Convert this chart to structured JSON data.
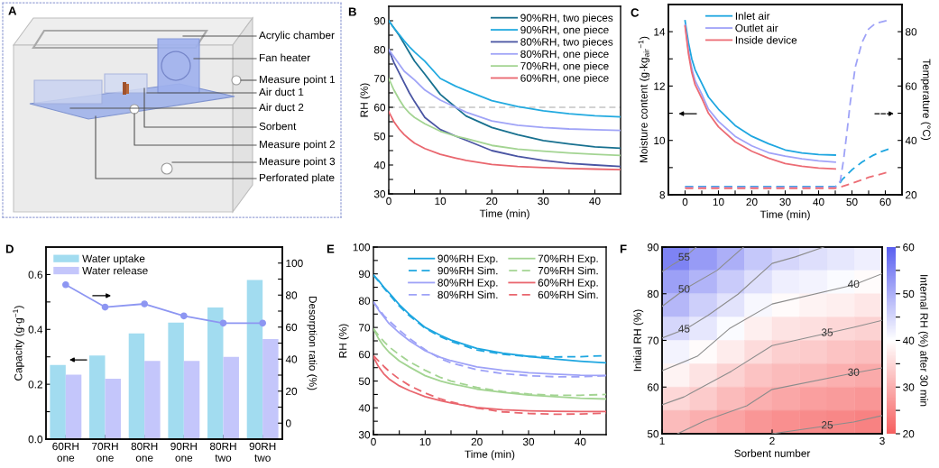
{
  "chart_data": [
    {
      "type": "other",
      "title": "A",
      "annotations": [
        "Acrylic chamber",
        "Fan heater",
        "Measure point 1",
        "Air duct 1",
        "Air duct 2",
        "Sorbent",
        "Measure point 2",
        "Measure point 3",
        "Perforated plate"
      ]
    },
    {
      "type": "line",
      "title": "B",
      "xlabel": "Time (min)",
      "ylabel": "RH (%)",
      "x": [
        0,
        1,
        2,
        3,
        4,
        5,
        7,
        10,
        13,
        15,
        20,
        25,
        30,
        35,
        40,
        45
      ],
      "xlim": [
        0,
        45
      ],
      "xticks": [
        0,
        {
          "value": 5,
          "label": null
        },
        10,
        {
          "value": 15,
          "label": null
        },
        20,
        {
          "value": 25,
          "label": null
        },
        30,
        {
          "value": 35,
          "label": null
        },
        40
      ],
      "ylim": [
        30,
        95
      ],
      "yticks": [
        30,
        {
          "value": 35,
          "label": null
        },
        40,
        {
          "value": 45,
          "label": null
        },
        50,
        {
          "value": 55,
          "label": null
        },
        60,
        {
          "value": 65,
          "label": null
        },
        70,
        {
          "value": 75,
          "label": null
        },
        80,
        {
          "value": 85,
          "label": null
        },
        90
      ],
      "legend": "top right",
      "ref_lines": [
        {
          "axis": "y",
          "value": 60,
          "color": "#c4c4c4",
          "line_style": "dashed"
        }
      ],
      "series": [
        {
          "name": "90%RH, two pieces",
          "color": "#17708f",
          "values": [
            90,
            87.5,
            85,
            82,
            79,
            76,
            71.5,
            64.5,
            60,
            57,
            53,
            50.5,
            48.5,
            47.3,
            46.3,
            45.8
          ]
        },
        {
          "name": "90%RH, one piece",
          "color": "#22aae0",
          "values": [
            90,
            87.5,
            85.3,
            83,
            81,
            79.2,
            76,
            70,
            67.3,
            65.8,
            62.3,
            60.3,
            58.8,
            57.8,
            57.1,
            56.7
          ]
        },
        {
          "name": "80%RH, two pieces",
          "color": "#4a55a3",
          "values": [
            80,
            75.5,
            72,
            68.5,
            65,
            62,
            56.5,
            52.3,
            50,
            48.6,
            45,
            43,
            41.6,
            40.6,
            40,
            39.5
          ]
        },
        {
          "name": "80%RH, one piece",
          "color": "#a0a4f7",
          "values": [
            80,
            77.5,
            75,
            72.5,
            71,
            69.5,
            66,
            62.5,
            60,
            58.3,
            55.3,
            53.8,
            53,
            52.5,
            52.2,
            52
          ]
        },
        {
          "name": "70%RH, one piece",
          "color": "#a3d492",
          "values": [
            70,
            66,
            62.8,
            60,
            58,
            56.5,
            54.3,
            51.7,
            50,
            49.2,
            46.8,
            45.5,
            44.8,
            44.2,
            43.7,
            43.3
          ]
        },
        {
          "name": "60%RH, one piece",
          "color": "#e9666e",
          "values": [
            58.5,
            55,
            52.5,
            50.5,
            49,
            47.6,
            45.7,
            43.7,
            42.4,
            41.6,
            40.2,
            39.5,
            39.1,
            38.8,
            38.6,
            38.4
          ]
        }
      ]
    },
    {
      "type": "line",
      "title": "C",
      "xlabel": "Time (min)",
      "ylabel": "Moisture content (g·kg$_{air}$$^{−1}$)",
      "y2label": "Temperature (°C)",
      "x": [
        0,
        1,
        2,
        3,
        5,
        7,
        10,
        15,
        20,
        25,
        30,
        35,
        40,
        45
      ],
      "xlim": [
        -5,
        65
      ],
      "xticks": [
        0,
        {
          "value": 5,
          "label": null
        },
        10,
        {
          "value": 15,
          "label": null
        },
        20,
        {
          "value": 25,
          "label": null
        },
        30,
        {
          "value": 35,
          "label": null
        },
        40,
        {
          "value": 45,
          "label": null
        },
        50,
        {
          "value": 55,
          "label": null
        },
        60
      ],
      "ylim": [
        8,
        15
      ],
      "yticks": [
        8,
        {
          "value": 9,
          "label": null
        },
        10,
        {
          "value": 11,
          "label": null
        },
        12,
        {
          "value": 13,
          "label": null
        },
        14
      ],
      "y2lim": [
        20,
        90
      ],
      "y2ticks": [
        20,
        {
          "value": 30,
          "label": null
        },
        40,
        {
          "value": 50,
          "label": null
        },
        60,
        {
          "value": 70,
          "label": null
        },
        80
      ],
      "legend": "top left",
      "series": [
        {
          "name": "Inlet air",
          "color": "#1ea6e0",
          "values": [
            14.4,
            13.6,
            13.0,
            12.6,
            12.1,
            11.6,
            11.15,
            10.55,
            10.15,
            9.88,
            9.65,
            9.54,
            9.48,
            9.46
          ]
        },
        {
          "name": "Outlet air",
          "color": "#a0a2f8",
          "values": [
            14.25,
            13.3,
            12.65,
            12.2,
            11.7,
            11.15,
            10.7,
            10.15,
            9.8,
            9.55,
            9.42,
            9.32,
            9.25,
            9.2
          ]
        },
        {
          "name": "Inside device",
          "color": "#ec6c75",
          "values": [
            14.2,
            13.2,
            12.5,
            12.05,
            11.55,
            11.0,
            10.5,
            9.95,
            9.6,
            9.35,
            9.15,
            9.05,
            8.98,
            8.95
          ]
        },
        {
          "axis": "y2",
          "line_style": "dashed",
          "color": "#1ea6e0",
          "x": [
            0,
            45,
            46,
            47,
            50,
            53,
            56,
            59,
            61
          ],
          "values": [
            23,
            23,
            23.5,
            25.5,
            29.2,
            32,
            34.3,
            36,
            36.8
          ]
        },
        {
          "axis": "y2",
          "line_style": "dashed",
          "color": "#9ea2f7",
          "x": [
            0,
            45,
            46.5,
            47.5,
            48.5,
            49.5,
            51,
            53,
            55,
            57,
            61
          ],
          "values": [
            22.8,
            22.8,
            25,
            33,
            43,
            54,
            67,
            76,
            81,
            83,
            84.3
          ]
        },
        {
          "axis": "y2",
          "line_style": "dashed",
          "color": "#ec6d75",
          "x": [
            0,
            45,
            47,
            50,
            55,
            61
          ],
          "values": [
            22.4,
            22.4,
            23,
            24.2,
            26.4,
            28.4
          ]
        }
      ]
    },
    {
      "type": "bar",
      "title": "D",
      "ylabel": "Capacity (g·g$^{−1}$)",
      "y2label": "Desorption ratio (%)",
      "categories": [
        "60RH\none",
        "70RH\none",
        "80RH\none",
        "90RH\none",
        "80RH\ntwo",
        "90RH\ntwo"
      ],
      "ylim": [
        0,
        0.7
      ],
      "yticks": [
        {
          "value": 0,
          "label": "0.0"
        },
        {
          "value": 0.1,
          "label": null
        },
        0.2,
        {
          "value": 0.3,
          "label": null
        },
        0.4,
        {
          "value": 0.5,
          "label": null
        },
        0.6
      ],
      "y2lim": [
        -10,
        110
      ],
      "y2ticks": [
        0,
        {
          "value": 10,
          "label": null
        },
        20,
        {
          "value": 30,
          "label": null
        },
        40,
        {
          "value": 50,
          "label": null
        },
        60,
        {
          "value": 70,
          "label": null
        },
        80,
        {
          "value": 90,
          "label": null
        },
        100
      ],
      "legend": "top left",
      "series": [
        {
          "name": "Water uptake",
          "color": "#a2dcf0",
          "values": [
            0.27,
            0.305,
            0.385,
            0.425,
            0.48,
            0.58
          ]
        },
        {
          "name": "Water release",
          "color": "#c4c6fb",
          "values": [
            0.235,
            0.22,
            0.285,
            0.285,
            0.3,
            0.365
          ]
        },
        {
          "type": "line",
          "axis": "y2",
          "marker": "circle",
          "color": "#8d96f2",
          "values": [
            86.5,
            72.5,
            74.5,
            67,
            62.5,
            62.5
          ]
        }
      ]
    },
    {
      "type": "line",
      "title": "E",
      "xlabel": "Time (min)",
      "ylabel": "RH (%)",
      "x": [
        0,
        1,
        2,
        3,
        5,
        7,
        10,
        13,
        15,
        20,
        25,
        30,
        35,
        40,
        45
      ],
      "xlim": [
        0,
        45
      ],
      "xticks": [
        0,
        {
          "value": 5,
          "label": null
        },
        10,
        {
          "value": 15,
          "label": null
        },
        20,
        {
          "value": 25,
          "label": null
        },
        30,
        {
          "value": 35,
          "label": null
        },
        40
      ],
      "ylim": [
        30,
        100
      ],
      "yticks": [
        30,
        {
          "value": 35,
          "label": null
        },
        40,
        {
          "value": 45,
          "label": null
        },
        50,
        {
          "value": 55,
          "label": null
        },
        60,
        {
          "value": 65,
          "label": null
        },
        70,
        {
          "value": 75,
          "label": null
        },
        80,
        {
          "value": 85,
          "label": null
        },
        90,
        {
          "value": 95,
          "label": null
        },
        100
      ],
      "legend": "top right",
      "series": [
        {
          "name": "90%RH Exp.",
          "color": "#1ea6e0",
          "values": [
            89.5,
            87.5,
            85,
            83,
            78.5,
            74.8,
            70,
            67,
            65.3,
            62.2,
            60.4,
            59.2,
            58.2,
            57.4,
            56.8
          ]
        },
        {
          "name": "90%RH Sim.",
          "color": "#1ea6e0",
          "line_style": "dashed",
          "values": [
            89.5,
            87.2,
            84.8,
            82.5,
            78,
            74.3,
            69.7,
            66.5,
            64.8,
            61.6,
            60,
            59.2,
            59,
            59.1,
            59.5
          ]
        },
        {
          "name": "80%RH Exp.",
          "color": "#9ea2f7",
          "values": [
            79.5,
            76.5,
            74,
            71.5,
            68,
            65,
            61.3,
            58.8,
            57.6,
            55.3,
            54,
            53.1,
            52.6,
            52.2,
            52.1
          ]
        },
        {
          "name": "80%RH Sim.",
          "color": "#9ea2f7",
          "line_style": "dashed",
          "values": [
            79.5,
            77,
            74.5,
            72.5,
            69,
            65.8,
            61.7,
            58.3,
            56.8,
            54.2,
            52.8,
            52,
            51.6,
            51.6,
            52
          ]
        },
        {
          "name": "70%RH Exp.",
          "color": "#a3d492",
          "values": [
            69.5,
            65.8,
            63,
            60.8,
            57.5,
            55.2,
            52,
            50,
            49,
            47,
            45.8,
            44.8,
            44.2,
            43.6,
            43.3
          ]
        },
        {
          "name": "70%RH Sim.",
          "color": "#a3d492",
          "line_style": "dashed",
          "values": [
            69.5,
            67,
            64.8,
            62.8,
            59.8,
            57.2,
            54,
            51.3,
            50,
            47.6,
            46.1,
            45.2,
            44.7,
            44.7,
            45
          ]
        },
        {
          "name": "60%RH Exp.",
          "color": "#e9666e",
          "values": [
            59,
            55.3,
            52.7,
            50.8,
            48.2,
            46.4,
            44.2,
            42.7,
            41.8,
            40.1,
            39.3,
            38.9,
            38.7,
            38.6,
            38.6
          ]
        },
        {
          "name": "60%RH Sim.",
          "color": "#e9666e",
          "line_style": "dashed",
          "values": [
            59.5,
            57.5,
            55.5,
            53.7,
            50.7,
            48.3,
            45.5,
            43.3,
            42.2,
            39.9,
            38.5,
            37.9,
            37.6,
            37.7,
            38
          ]
        }
      ]
    },
    {
      "type": "heatmap",
      "title": "F",
      "clabel": "Internal RH (%) after 30 min",
      "tick_labels": false,
      "categories": [
        null,
        null,
        null,
        null,
        null,
        null,
        null,
        null
      ],
      "y_categories": [
        null,
        null,
        null,
        null,
        null,
        null,
        null,
        null
      ],
      "cells": [
        [
          55.5,
          52.5,
          50,
          47,
          45,
          44,
          43,
          42
        ],
        [
          52,
          49.5,
          46.5,
          44,
          42,
          41.5,
          40.5,
          39.5
        ],
        [
          49,
          46,
          43.5,
          41,
          39.5,
          38.5,
          38,
          37
        ],
        [
          45,
          43,
          40.5,
          38,
          36.5,
          36,
          35,
          34.5
        ],
        [
          41.5,
          39.5,
          37.5,
          35.5,
          34,
          33.5,
          32.5,
          32
        ],
        [
          38.5,
          36.5,
          34.5,
          32.5,
          31.5,
          31,
          30,
          29.5
        ],
        [
          35,
          33.5,
          31.5,
          30,
          29,
          28,
          27.5,
          27
        ],
        [
          31.5,
          30,
          28.5,
          27,
          26,
          25.5,
          25,
          24.5
        ]
      ],
      "clim": [
        20,
        60
      ],
      "cticks": [
        20,
        {
          "value": 25,
          "label": null
        },
        30,
        {
          "value": 35,
          "label": null
        },
        40,
        {
          "value": 45,
          "label": null
        },
        50,
        {
          "value": 55,
          "label": null
        },
        60
      ]
    },
    {
      "type": "line",
      "xlabel": "Sorbent number",
      "ylabel": "Initial RH (%)",
      "xlim": [
        1,
        3
      ],
      "xticks": [
        1,
        2,
        3
      ],
      "ylim": [
        50,
        90
      ],
      "yticks": [
        50,
        60,
        70,
        80,
        90
      ],
      "series": [
        {
          "name": "55",
          "color": "#8c8c8c",
          "x": [
            1,
            1.1,
            1.2,
            1.31
          ],
          "values": [
            84.7,
            86.3,
            87.7,
            90
          ]
        },
        {
          "name": "50",
          "color": "#8c8c8c",
          "x": [
            1,
            1.22,
            1.5,
            1.74
          ],
          "values": [
            77.3,
            81.2,
            85,
            90
          ]
        },
        {
          "name": "45",
          "color": "#8c8c8c",
          "x": [
            1,
            1.22,
            1.42,
            1.69,
            2,
            2.21,
            2.47
          ],
          "values": [
            70.5,
            72.5,
            75.4,
            79.9,
            86.5,
            87.9,
            90
          ]
        },
        {
          "name": "40",
          "color": "#8c8c8c",
          "x": [
            1,
            1.32,
            1.61,
            2,
            2.74,
            3
          ],
          "values": [
            63.5,
            66.6,
            72.5,
            77.8,
            81.9,
            84.3
          ]
        },
        {
          "name": "35",
          "color": "#8c8c8c",
          "x": [
            1,
            1.2,
            1.63,
            2,
            2.74,
            3
          ],
          "values": [
            56.2,
            57.9,
            63.4,
            68.9,
            72.8,
            74.3
          ]
        },
        {
          "name": "30",
          "color": "#8c8c8c",
          "x": [
            1.14,
            1.39,
            1.77,
            2,
            2.74,
            3
          ],
          "values": [
            50,
            52.8,
            56,
            59.5,
            63,
            64.1
          ]
        },
        {
          "name": "25",
          "color": "#8c8c8c",
          "x": [
            2,
            2.74,
            3
          ],
          "values": [
            50,
            52.5,
            53.9
          ]
        }
      ]
    }
  ]
}
